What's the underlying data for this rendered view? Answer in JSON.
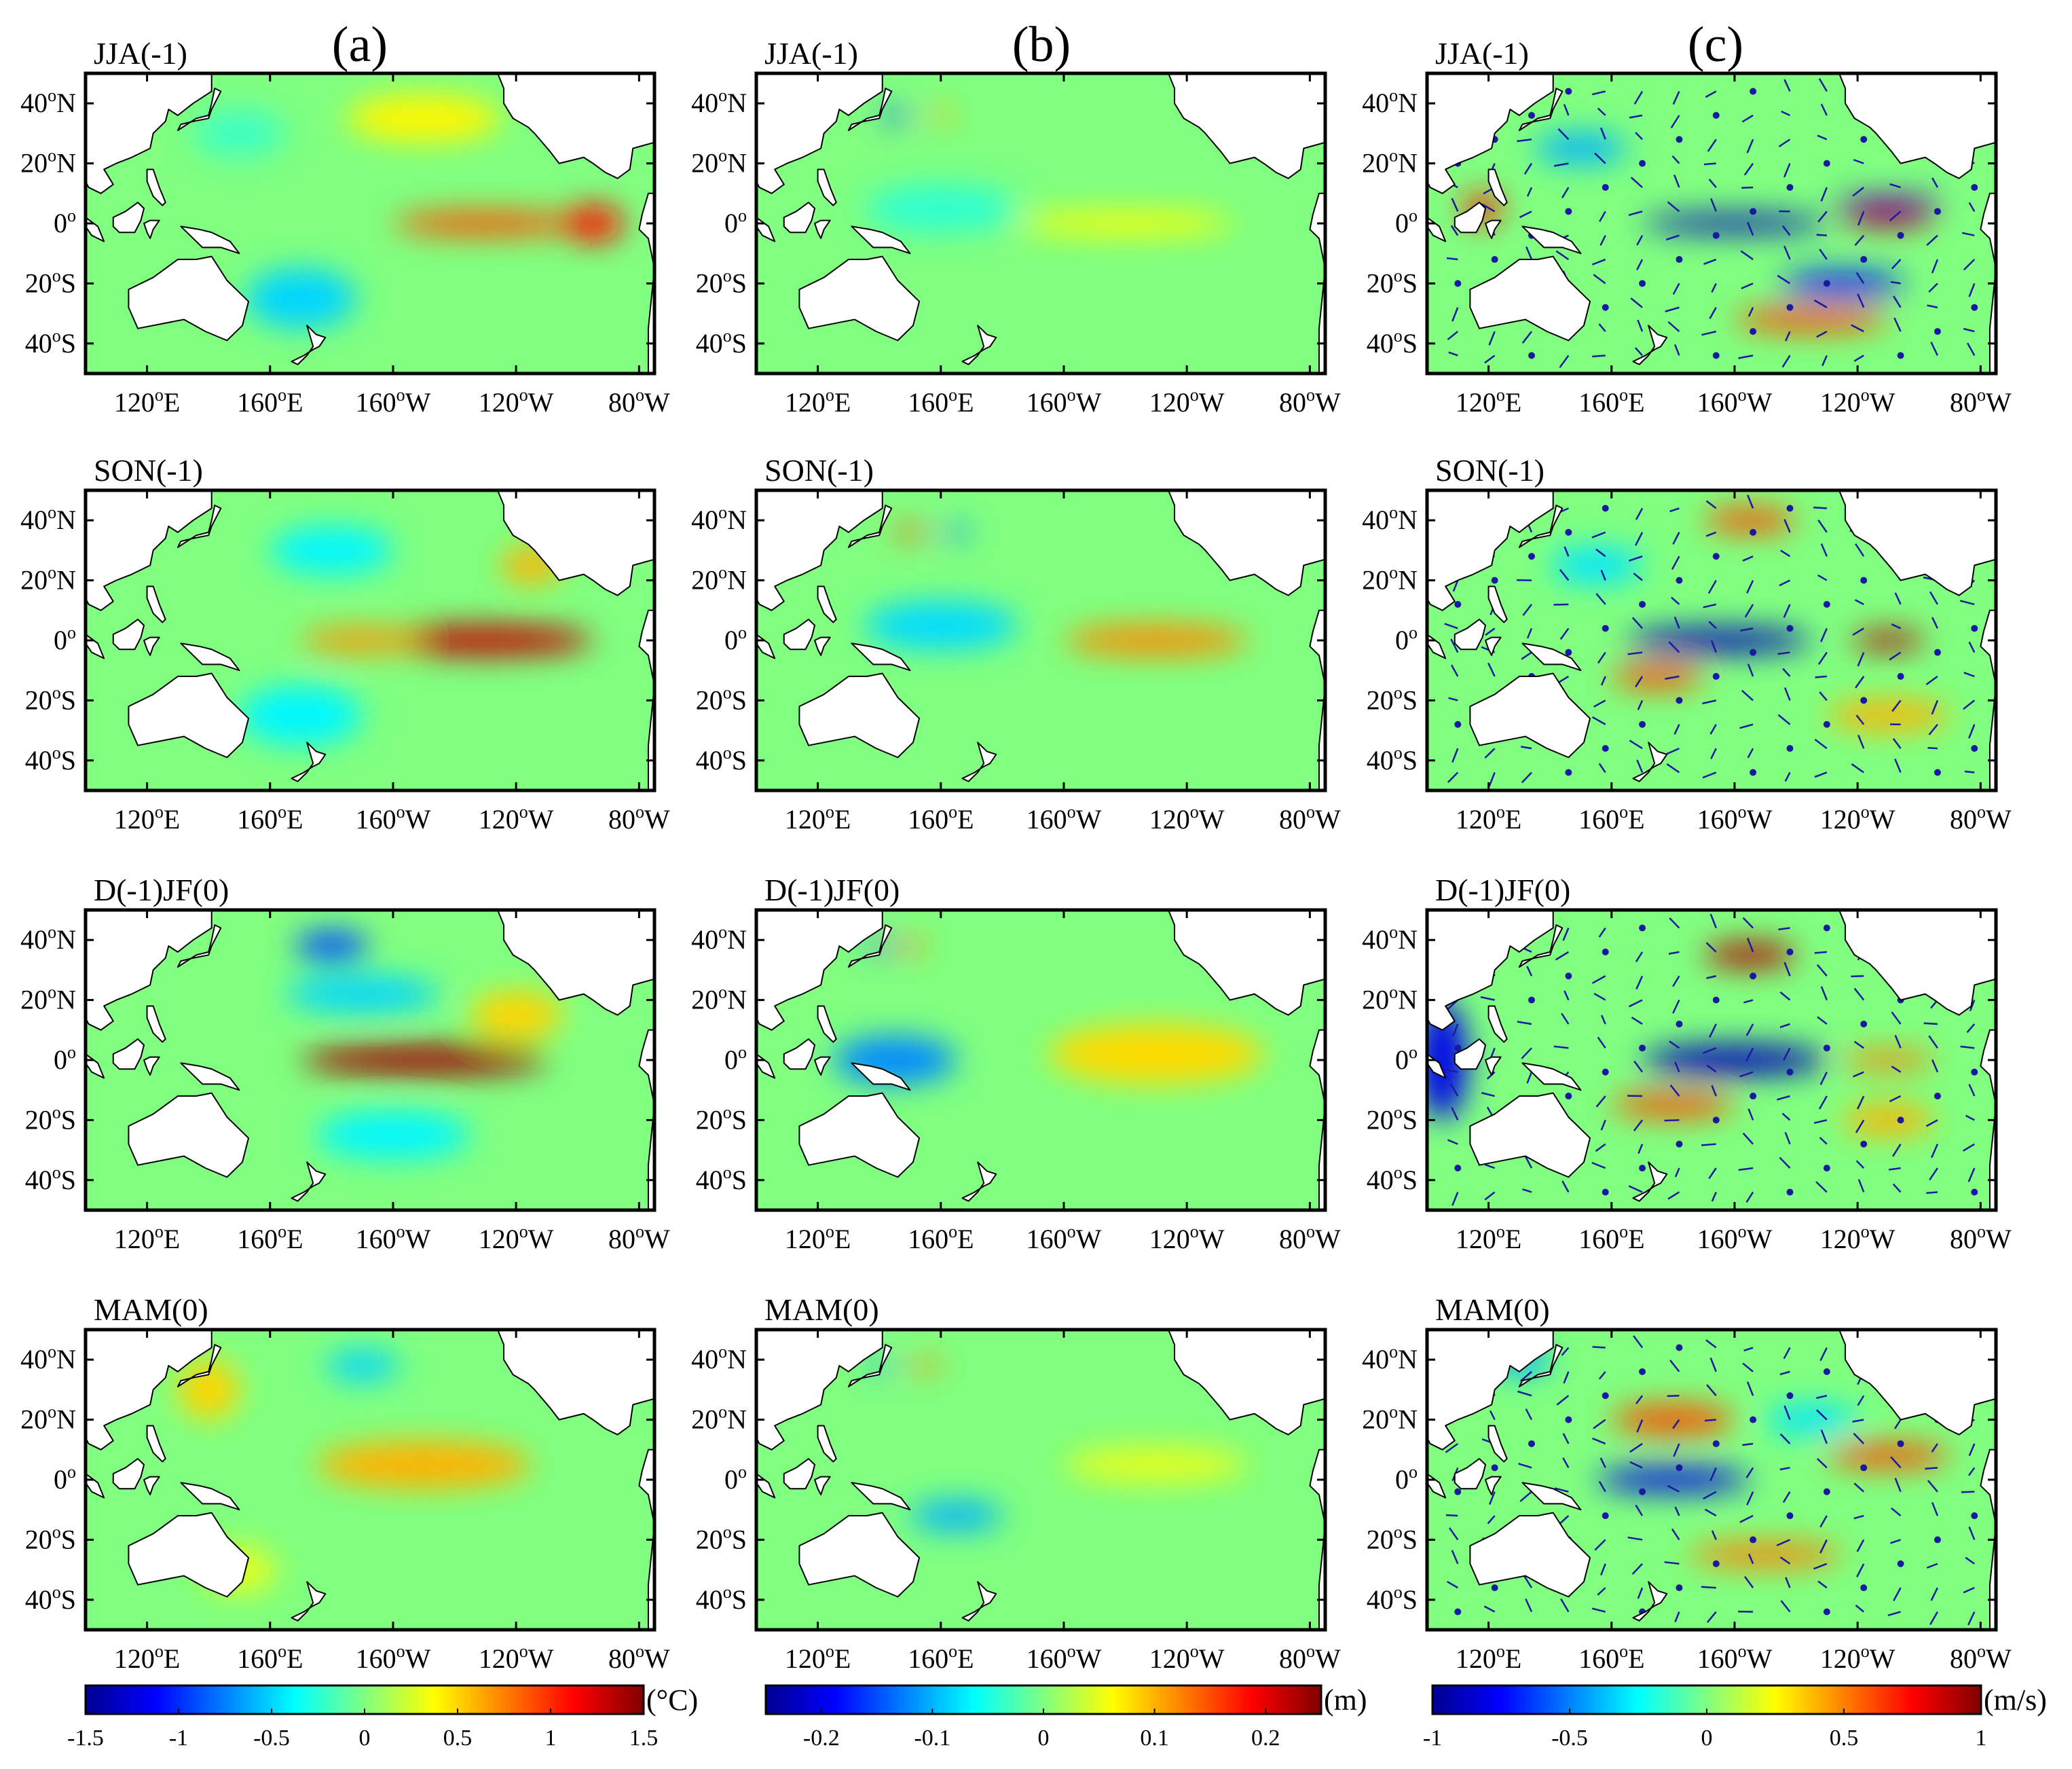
{
  "chart_data": {
    "type": "heatmap",
    "title": "",
    "columns": [
      {
        "id": "a",
        "label": "(a)",
        "colorbar": {
          "unit": "(°C)",
          "range": [
            -1.5,
            1.5
          ],
          "ticks": [
            "-1.5",
            "-1",
            "-0.5",
            "0",
            "0.5",
            "1",
            "1.5"
          ],
          "tick_values": [
            -1.5,
            -1,
            -0.5,
            0,
            0.5,
            1,
            1.5
          ]
        },
        "panels": [
          {
            "season": "JJA(-1)",
            "features": [
              {
                "lon": 230,
                "lat": 0,
                "value": 0.9,
                "lon_spread": 30,
                "lat_spread": 4
              },
              {
                "lon": 265,
                "lat": 0,
                "value": 1.1,
                "lon_spread": 10,
                "lat_spread": 6
              },
              {
                "lon": 210,
                "lat": 35,
                "value": 0.4,
                "lon_spread": 25,
                "lat_spread": 8
              },
              {
                "lon": 170,
                "lat": -25,
                "value": -0.5,
                "lon_spread": 18,
                "lat_spread": 10
              },
              {
                "lon": 150,
                "lat": 30,
                "value": -0.2,
                "lon_spread": 15,
                "lat_spread": 8
              }
            ]
          },
          {
            "season": "SON(-1)",
            "features": [
              {
                "lon": 230,
                "lat": 0,
                "value": 1.3,
                "lon_spread": 35,
                "lat_spread": 5
              },
              {
                "lon": 190,
                "lat": 0,
                "value": 0.7,
                "lon_spread": 20,
                "lat_spread": 4
              },
              {
                "lon": 245,
                "lat": 25,
                "value": 0.6,
                "lon_spread": 10,
                "lat_spread": 6
              },
              {
                "lon": 170,
                "lat": -25,
                "value": -0.4,
                "lon_spread": 20,
                "lat_spread": 10
              },
              {
                "lon": 180,
                "lat": 30,
                "value": -0.4,
                "lon_spread": 20,
                "lat_spread": 8
              }
            ]
          },
          {
            "season": "D(-1)JF(0)",
            "features": [
              {
                "lon": 210,
                "lat": 0,
                "value": 1.4,
                "lon_spread": 40,
                "lat_spread": 5
              },
              {
                "lon": 180,
                "lat": 38,
                "value": -0.9,
                "lon_spread": 12,
                "lat_spread": 5
              },
              {
                "lon": 190,
                "lat": 22,
                "value": -0.5,
                "lon_spread": 25,
                "lat_spread": 6
              },
              {
                "lon": 200,
                "lat": -25,
                "value": -0.4,
                "lon_spread": 25,
                "lat_spread": 8
              },
              {
                "lon": 240,
                "lat": 15,
                "value": 0.5,
                "lon_spread": 15,
                "lat_spread": 8
              }
            ]
          },
          {
            "season": "MAM(0)",
            "features": [
              {
                "lon": 210,
                "lat": 5,
                "value": 0.6,
                "lon_spread": 35,
                "lat_spread": 8
              },
              {
                "lon": 140,
                "lat": 30,
                "value": 0.5,
                "lon_spread": 10,
                "lat_spread": 10
              },
              {
                "lon": 190,
                "lat": 38,
                "value": -0.5,
                "lon_spread": 12,
                "lat_spread": 5
              },
              {
                "lon": 150,
                "lat": -30,
                "value": 0.3,
                "lon_spread": 12,
                "lat_spread": 8
              }
            ]
          }
        ]
      },
      {
        "id": "b",
        "label": "(b)",
        "colorbar": {
          "unit": "(m)",
          "range": [
            -0.25,
            0.25
          ],
          "ticks": [
            "-0.2",
            "-0.1",
            "0",
            "0.1",
            "0.2"
          ],
          "tick_values": [
            -0.2,
            -0.1,
            0,
            0.1,
            0.2
          ]
        },
        "panels": [
          {
            "season": "JJA(-1)",
            "features": [
              {
                "lon": 220,
                "lat": 0,
                "value": 0.06,
                "lon_spread": 35,
                "lat_spread": 4
              },
              {
                "lon": 160,
                "lat": 5,
                "value": -0.04,
                "lon_spread": 25,
                "lat_spread": 8
              },
              {
                "lon": 145,
                "lat": 36,
                "value": -0.15,
                "lon_spread": 5,
                "lat_spread": 2
              },
              {
                "lon": 160,
                "lat": 36,
                "value": 0.1,
                "lon_spread": 5,
                "lat_spread": 2
              }
            ]
          },
          {
            "season": "SON(-1)",
            "features": [
              {
                "lon": 230,
                "lat": 0,
                "value": 0.12,
                "lon_spread": 30,
                "lat_spread": 5
              },
              {
                "lon": 160,
                "lat": 5,
                "value": -0.08,
                "lon_spread": 25,
                "lat_spread": 8
              },
              {
                "lon": 150,
                "lat": 36,
                "value": 0.15,
                "lon_spread": 6,
                "lat_spread": 2
              },
              {
                "lon": 165,
                "lat": 36,
                "value": -0.12,
                "lon_spread": 5,
                "lat_spread": 2
              }
            ]
          },
          {
            "season": "D(-1)JF(0)",
            "features": [
              {
                "lon": 230,
                "lat": 2,
                "value": 0.08,
                "lon_spread": 35,
                "lat_spread": 10
              },
              {
                "lon": 145,
                "lat": 0,
                "value": -0.12,
                "lon_spread": 20,
                "lat_spread": 8
              },
              {
                "lon": 150,
                "lat": 38,
                "value": 0.12,
                "lon_spread": 6,
                "lat_spread": 2
              },
              {
                "lon": 140,
                "lat": 38,
                "value": -0.15,
                "lon_spread": 4,
                "lat_spread": 2
              }
            ]
          },
          {
            "season": "MAM(0)",
            "features": [
              {
                "lon": 230,
                "lat": 5,
                "value": 0.05,
                "lon_spread": 30,
                "lat_spread": 6
              },
              {
                "lon": 165,
                "lat": -12,
                "value": -0.1,
                "lon_spread": 15,
                "lat_spread": 5
              },
              {
                "lon": 155,
                "lat": 38,
                "value": 0.12,
                "lon_spread": 6,
                "lat_spread": 2
              },
              {
                "lon": 140,
                "lat": 38,
                "value": -0.12,
                "lon_spread": 4,
                "lat_spread": 2
              }
            ]
          }
        ]
      },
      {
        "id": "c",
        "label": "(c)",
        "colorbar": {
          "unit": "(m/s)",
          "range": [
            -1,
            1
          ],
          "ticks": [
            "-1",
            "-0.5",
            "0",
            "0.5",
            "1"
          ],
          "tick_values": [
            -1,
            -0.5,
            0,
            0.5,
            1
          ]
        },
        "panels": [
          {
            "season": "JJA(-1)",
            "features": [
              {
                "lon": 200,
                "lat": 0,
                "value": -0.9,
                "lon_spread": 30,
                "lat_spread": 3
              },
              {
                "lon": 250,
                "lat": 2,
                "value": 0.9,
                "lon_spread": 15,
                "lat_spread": 3
              },
              {
                "lon": 250,
                "lat": 7,
                "value": -0.9,
                "lon_spread": 18,
                "lat_spread": 2
              },
              {
                "lon": 235,
                "lat": -20,
                "value": -0.7,
                "lon_spread": 20,
                "lat_spread": 4
              },
              {
                "lon": 225,
                "lat": -32,
                "value": 0.6,
                "lon_spread": 25,
                "lat_spread": 4
              },
              {
                "lon": 118,
                "lat": 5,
                "value": 0.7,
                "lon_spread": 6,
                "lat_spread": 5
              },
              {
                "lon": 150,
                "lat": 25,
                "value": -0.4,
                "lon_spread": 15,
                "lat_spread": 5
              }
            ]
          },
          {
            "season": "SON(-1)",
            "features": [
              {
                "lon": 195,
                "lat": 0,
                "value": -0.9,
                "lon_spread": 30,
                "lat_spread": 4
              },
              {
                "lon": 250,
                "lat": 0,
                "value": 0.9,
                "lon_spread": 12,
                "lat_spread": 3
              },
              {
                "lon": 175,
                "lat": -12,
                "value": 0.6,
                "lon_spread": 15,
                "lat_spread": 4
              },
              {
                "lon": 205,
                "lat": 40,
                "value": 0.6,
                "lon_spread": 15,
                "lat_spread": 4
              },
              {
                "lon": 250,
                "lat": -25,
                "value": 0.4,
                "lon_spread": 20,
                "lat_spread": 5
              },
              {
                "lon": 155,
                "lat": 25,
                "value": -0.3,
                "lon_spread": 15,
                "lat_spread": 6
              }
            ]
          },
          {
            "season": "D(-1)JF(0)",
            "features": [
              {
                "lon": 200,
                "lat": 0,
                "value": -0.9,
                "lon_spread": 30,
                "lat_spread": 5
              },
              {
                "lon": 205,
                "lat": 35,
                "value": 0.9,
                "lon_spread": 15,
                "lat_spread": 4
              },
              {
                "lon": 180,
                "lat": -15,
                "value": 0.6,
                "lon_spread": 20,
                "lat_spread": 4
              },
              {
                "lon": 250,
                "lat": 0,
                "value": 0.5,
                "lon_spread": 15,
                "lat_spread": 3
              },
              {
                "lon": 105,
                "lat": 0,
                "value": -0.8,
                "lon_spread": 8,
                "lat_spread": 20
              },
              {
                "lon": 250,
                "lat": -20,
                "value": 0.4,
                "lon_spread": 15,
                "lat_spread": 5
              }
            ]
          },
          {
            "season": "MAM(0)",
            "features": [
              {
                "lon": 180,
                "lat": 0,
                "value": -0.8,
                "lon_spread": 25,
                "lat_spread": 4
              },
              {
                "lon": 180,
                "lat": 20,
                "value": 0.6,
                "lon_spread": 20,
                "lat_spread": 5
              },
              {
                "lon": 250,
                "lat": 8,
                "value": 0.6,
                "lon_spread": 20,
                "lat_spread": 4
              },
              {
                "lon": 210,
                "lat": -25,
                "value": 0.5,
                "lon_spread": 25,
                "lat_spread": 4
              },
              {
                "lon": 130,
                "lat": 40,
                "value": -0.4,
                "lon_spread": 10,
                "lat_spread": 5
              },
              {
                "lon": 225,
                "lat": 20,
                "value": -0.3,
                "lon_spread": 15,
                "lat_spread": 5
              }
            ]
          }
        ]
      }
    ],
    "x_axis": {
      "label": "",
      "range": [
        100,
        285
      ],
      "ticks": [
        120,
        160,
        200,
        240,
        280
      ],
      "tick_labels": [
        {
          "num": "120",
          "sup": "o",
          "suffix": "E"
        },
        {
          "num": "160",
          "sup": "o",
          "suffix": "E"
        },
        {
          "num": "160",
          "sup": "o",
          "suffix": "W"
        },
        {
          "num": "120",
          "sup": "o",
          "suffix": "W"
        },
        {
          "num": "80",
          "sup": "o",
          "suffix": "W"
        }
      ]
    },
    "y_axis": {
      "label": "",
      "range": [
        -50,
        50
      ],
      "ticks": [
        40,
        20,
        0,
        -20,
        -40
      ],
      "tick_labels": [
        {
          "num": "40",
          "sup": "o",
          "suffix": "N"
        },
        {
          "num": "20",
          "sup": "o",
          "suffix": "N"
        },
        {
          "num": "0",
          "sup": "o",
          "suffix": ""
        },
        {
          "num": "20",
          "sup": "o",
          "suffix": "S"
        },
        {
          "num": "40",
          "sup": "o",
          "suffix": "S"
        }
      ]
    },
    "colormap": [
      "#00008f",
      "#0000ff",
      "#0080ff",
      "#00ffff",
      "#80ff80",
      "#ffff00",
      "#ff8000",
      "#ff0000",
      "#800000"
    ],
    "background_color": "#60e28a",
    "land_color": "#ffffff",
    "vector_color": "#1a1aa0"
  }
}
